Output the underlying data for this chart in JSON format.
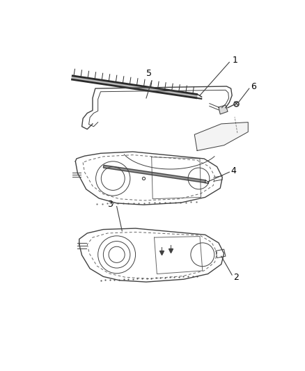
{
  "bg_color": "#ffffff",
  "line_color": "#404040",
  "label_color": "#000000",
  "fig_width": 4.39,
  "fig_height": 5.33,
  "dpi": 100,
  "panel1_color": "#f8f8f8",
  "panel2_color": "#f5f5f5"
}
